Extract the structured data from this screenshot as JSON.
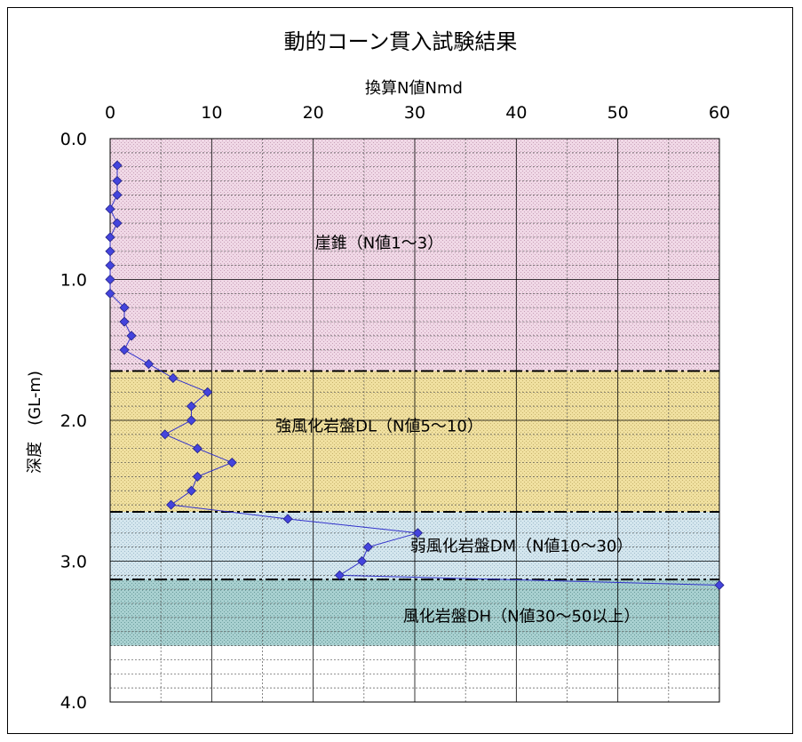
{
  "chart_data": {
    "type": "scatter",
    "title": "動的コーン貫入試験結果",
    "xlabel": "換算N値Nmd",
    "ylabel": "深度　(GL-m)",
    "xlim": [
      0,
      60
    ],
    "ylim": [
      0.0,
      4.0
    ],
    "x_axis_position": "top",
    "y_axis_inverted": true,
    "x_ticks": [
      "0",
      "10",
      "20",
      "30",
      "40",
      "50",
      "60"
    ],
    "y_ticks": [
      "0.0",
      "1.0",
      "2.0",
      "3.0",
      "4.0"
    ],
    "grid": true,
    "series": [
      {
        "color": "#3333cc",
        "marker": "diamond",
        "points": [
          {
            "x": 0.7,
            "y": 0.19
          },
          {
            "x": 0.7,
            "y": 0.3
          },
          {
            "x": 0.7,
            "y": 0.4
          },
          {
            "x": 0.0,
            "y": 0.5
          },
          {
            "x": 0.7,
            "y": 0.6
          },
          {
            "x": 0.0,
            "y": 0.7
          },
          {
            "x": 0.0,
            "y": 0.8
          },
          {
            "x": 0.0,
            "y": 0.9
          },
          {
            "x": 0.0,
            "y": 1.0
          },
          {
            "x": 0.0,
            "y": 1.1
          },
          {
            "x": 1.4,
            "y": 1.2
          },
          {
            "x": 1.4,
            "y": 1.3
          },
          {
            "x": 2.1,
            "y": 1.4
          },
          {
            "x": 1.4,
            "y": 1.5
          },
          {
            "x": 3.8,
            "y": 1.6
          },
          {
            "x": 6.2,
            "y": 1.7
          },
          {
            "x": 9.6,
            "y": 1.8
          },
          {
            "x": 8.0,
            "y": 1.9
          },
          {
            "x": 8.0,
            "y": 2.0
          },
          {
            "x": 5.4,
            "y": 2.1
          },
          {
            "x": 8.6,
            "y": 2.2
          },
          {
            "x": 12.0,
            "y": 2.3
          },
          {
            "x": 8.6,
            "y": 2.4
          },
          {
            "x": 8.0,
            "y": 2.5
          },
          {
            "x": 6.0,
            "y": 2.6
          },
          {
            "x": 17.5,
            "y": 2.7
          },
          {
            "x": 30.3,
            "y": 2.8
          },
          {
            "x": 25.4,
            "y": 2.9
          },
          {
            "x": 24.8,
            "y": 3.0
          },
          {
            "x": 22.6,
            "y": 3.1
          },
          {
            "x": 60.0,
            "y": 3.17
          }
        ]
      }
    ],
    "zones": [
      {
        "label": "崖錐（N値1～3）",
        "depth_from": 0.0,
        "depth_to": 1.65,
        "color": "#f0d8e6",
        "dot_color": "#c8a0b8"
      },
      {
        "label": "強風化岩盤DL（N値5～10）",
        "depth_from": 1.65,
        "depth_to": 2.65,
        "color": "#f0e0a0",
        "dot_color": "#c8b46e"
      },
      {
        "label": "弱風化岩盤DM（N値10～30）",
        "depth_from": 2.65,
        "depth_to": 3.13,
        "color": "#d4e6ee",
        "dot_color": "#a0bccc"
      },
      {
        "label": "風化岩盤DH（N値30～50以上）",
        "depth_from": 3.13,
        "depth_to": 3.6,
        "color": "#a8d0d0",
        "dot_color": "#6a9c9c"
      }
    ],
    "boundaries": [
      1.65,
      2.65,
      3.13
    ]
  }
}
